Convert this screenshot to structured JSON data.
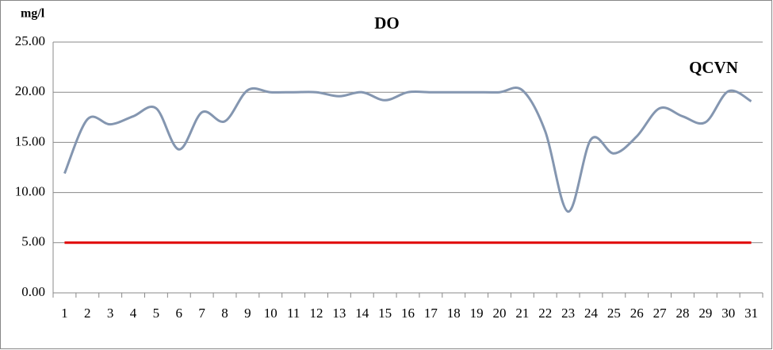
{
  "chart_data": {
    "type": "line",
    "title": "DO",
    "y_label": "mg/l",
    "categories": [
      "1",
      "2",
      "3",
      "4",
      "5",
      "6",
      "7",
      "8",
      "9",
      "10",
      "11",
      "12",
      "13",
      "14",
      "15",
      "16",
      "17",
      "18",
      "19",
      "20",
      "21",
      "22",
      "23",
      "24",
      "25",
      "26",
      "27",
      "28",
      "29",
      "30",
      "31"
    ],
    "series": [
      {
        "color": "#8496b0",
        "values": [
          11.9,
          17.3,
          16.8,
          17.6,
          18.4,
          14.3,
          18.0,
          17.1,
          20.2,
          20.0,
          20.0,
          20.0,
          19.6,
          20.0,
          19.2,
          20.0,
          20.0,
          20.0,
          20.0,
          20.0,
          20.2,
          16.1,
          8.1,
          15.3,
          13.9,
          15.6,
          18.4,
          17.6,
          17.0,
          20.1,
          19.1
        ]
      },
      {
        "name": "QCVN",
        "color": "#e00000",
        "values": [
          5,
          5,
          5,
          5,
          5,
          5,
          5,
          5,
          5,
          5,
          5,
          5,
          5,
          5,
          5,
          5,
          5,
          5,
          5,
          5,
          5,
          5,
          5,
          5,
          5,
          5,
          5,
          5,
          5,
          5,
          5
        ]
      }
    ],
    "ylim": [
      0,
      25
    ],
    "yticks": [
      {
        "value": 0,
        "label": "0.00"
      },
      {
        "value": 5,
        "label": "5.00"
      },
      {
        "value": 10,
        "label": "10.00"
      },
      {
        "value": 15,
        "label": "15.00"
      },
      {
        "value": 20,
        "label": "20.00"
      },
      {
        "value": 25,
        "label": "25.00"
      }
    ],
    "grid": true,
    "smooth": true
  }
}
